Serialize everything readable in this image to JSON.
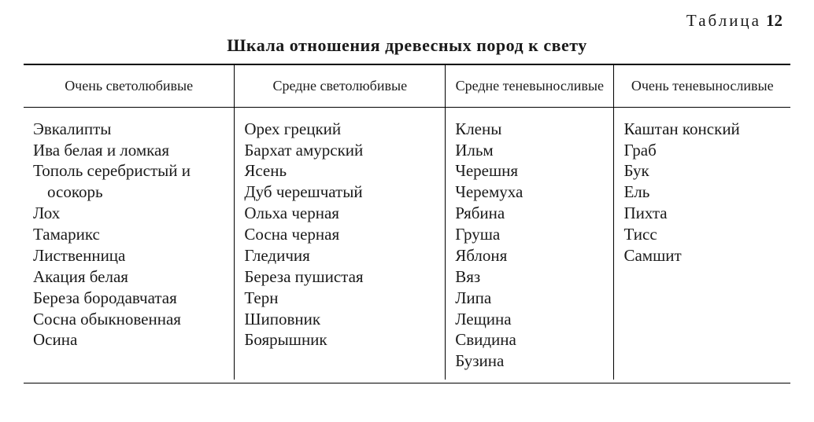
{
  "page": {
    "table_label_word": "Таблица",
    "table_number": "12",
    "title": "Шкала отношения древесных пород к свету"
  },
  "table": {
    "type": "table",
    "background_color": "#ffffff",
    "text_color": "#1a1a1a",
    "rule_color": "#000000",
    "font_family": "Times New Roman",
    "header_fontsize_pt": 14,
    "body_fontsize_pt": 16,
    "column_widths_pct": [
      27.5,
      27.5,
      22,
      23
    ],
    "columns": [
      {
        "key": "col1",
        "header": "Очень светолюбивые",
        "align": "left"
      },
      {
        "key": "col2",
        "header": "Средне светолюбивые",
        "align": "left"
      },
      {
        "key": "col3",
        "header": "Средне теневы­носливые",
        "align": "left"
      },
      {
        "key": "col4",
        "header": "Очень теневыносли­вые",
        "align": "left"
      }
    ],
    "data": {
      "col1": [
        "Эвкалипты",
        "Ива белая и ломкая",
        "Тополь серебристый и осокорь",
        "Лох",
        "Тамарикс",
        "Лиственница",
        "Акация белая",
        "Береза бородавчатая",
        "Сосна обыкновенная",
        "Осина"
      ],
      "col2": [
        "Орех грецкий",
        "Бархат амурский",
        "Ясень",
        "Дуб черешчатый",
        "Ольха черная",
        "Сосна черная",
        "Гледичия",
        "Береза пушистая",
        "Терн",
        "Шиповник",
        "Боярышник"
      ],
      "col3": [
        "Клены",
        "Ильм",
        "Черешня",
        "Черемуха",
        "Рябина",
        "Груша",
        "Яблоня",
        "Вяз",
        "Липа",
        "Лещина",
        "Свидина",
        "Бузина"
      ],
      "col4": [
        "Каштан конский",
        "Граб",
        "Бук",
        "Ель",
        "Пихта",
        "Тисс",
        "Самшит"
      ]
    }
  }
}
